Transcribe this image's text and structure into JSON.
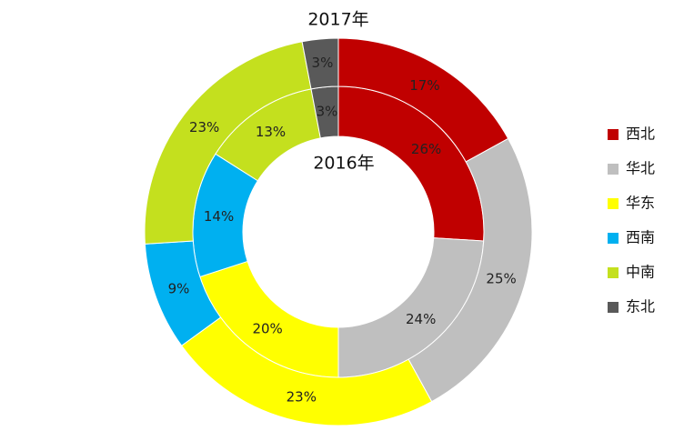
{
  "chart_data": {
    "type": "donut",
    "categories": [
      "西北",
      "华北",
      "华东",
      "西南",
      "中南",
      "东北"
    ],
    "colors": [
      "#c00000",
      "#bfbfbf",
      "#ffff00",
      "#00b0f0",
      "#c4e01e",
      "#595959"
    ],
    "legend": "right",
    "series": [
      {
        "name": "2016年",
        "values": [
          26,
          24,
          20,
          14,
          13,
          3
        ],
        "value_labels": [
          "26%",
          "24%",
          "20%",
          "14%",
          "13%",
          "3%"
        ]
      },
      {
        "name": "2017年",
        "values": [
          17,
          25,
          23,
          9,
          23,
          3
        ],
        "value_labels": [
          "17%",
          "25%",
          "23%",
          "9%",
          "23%",
          "3%"
        ]
      }
    ]
  }
}
